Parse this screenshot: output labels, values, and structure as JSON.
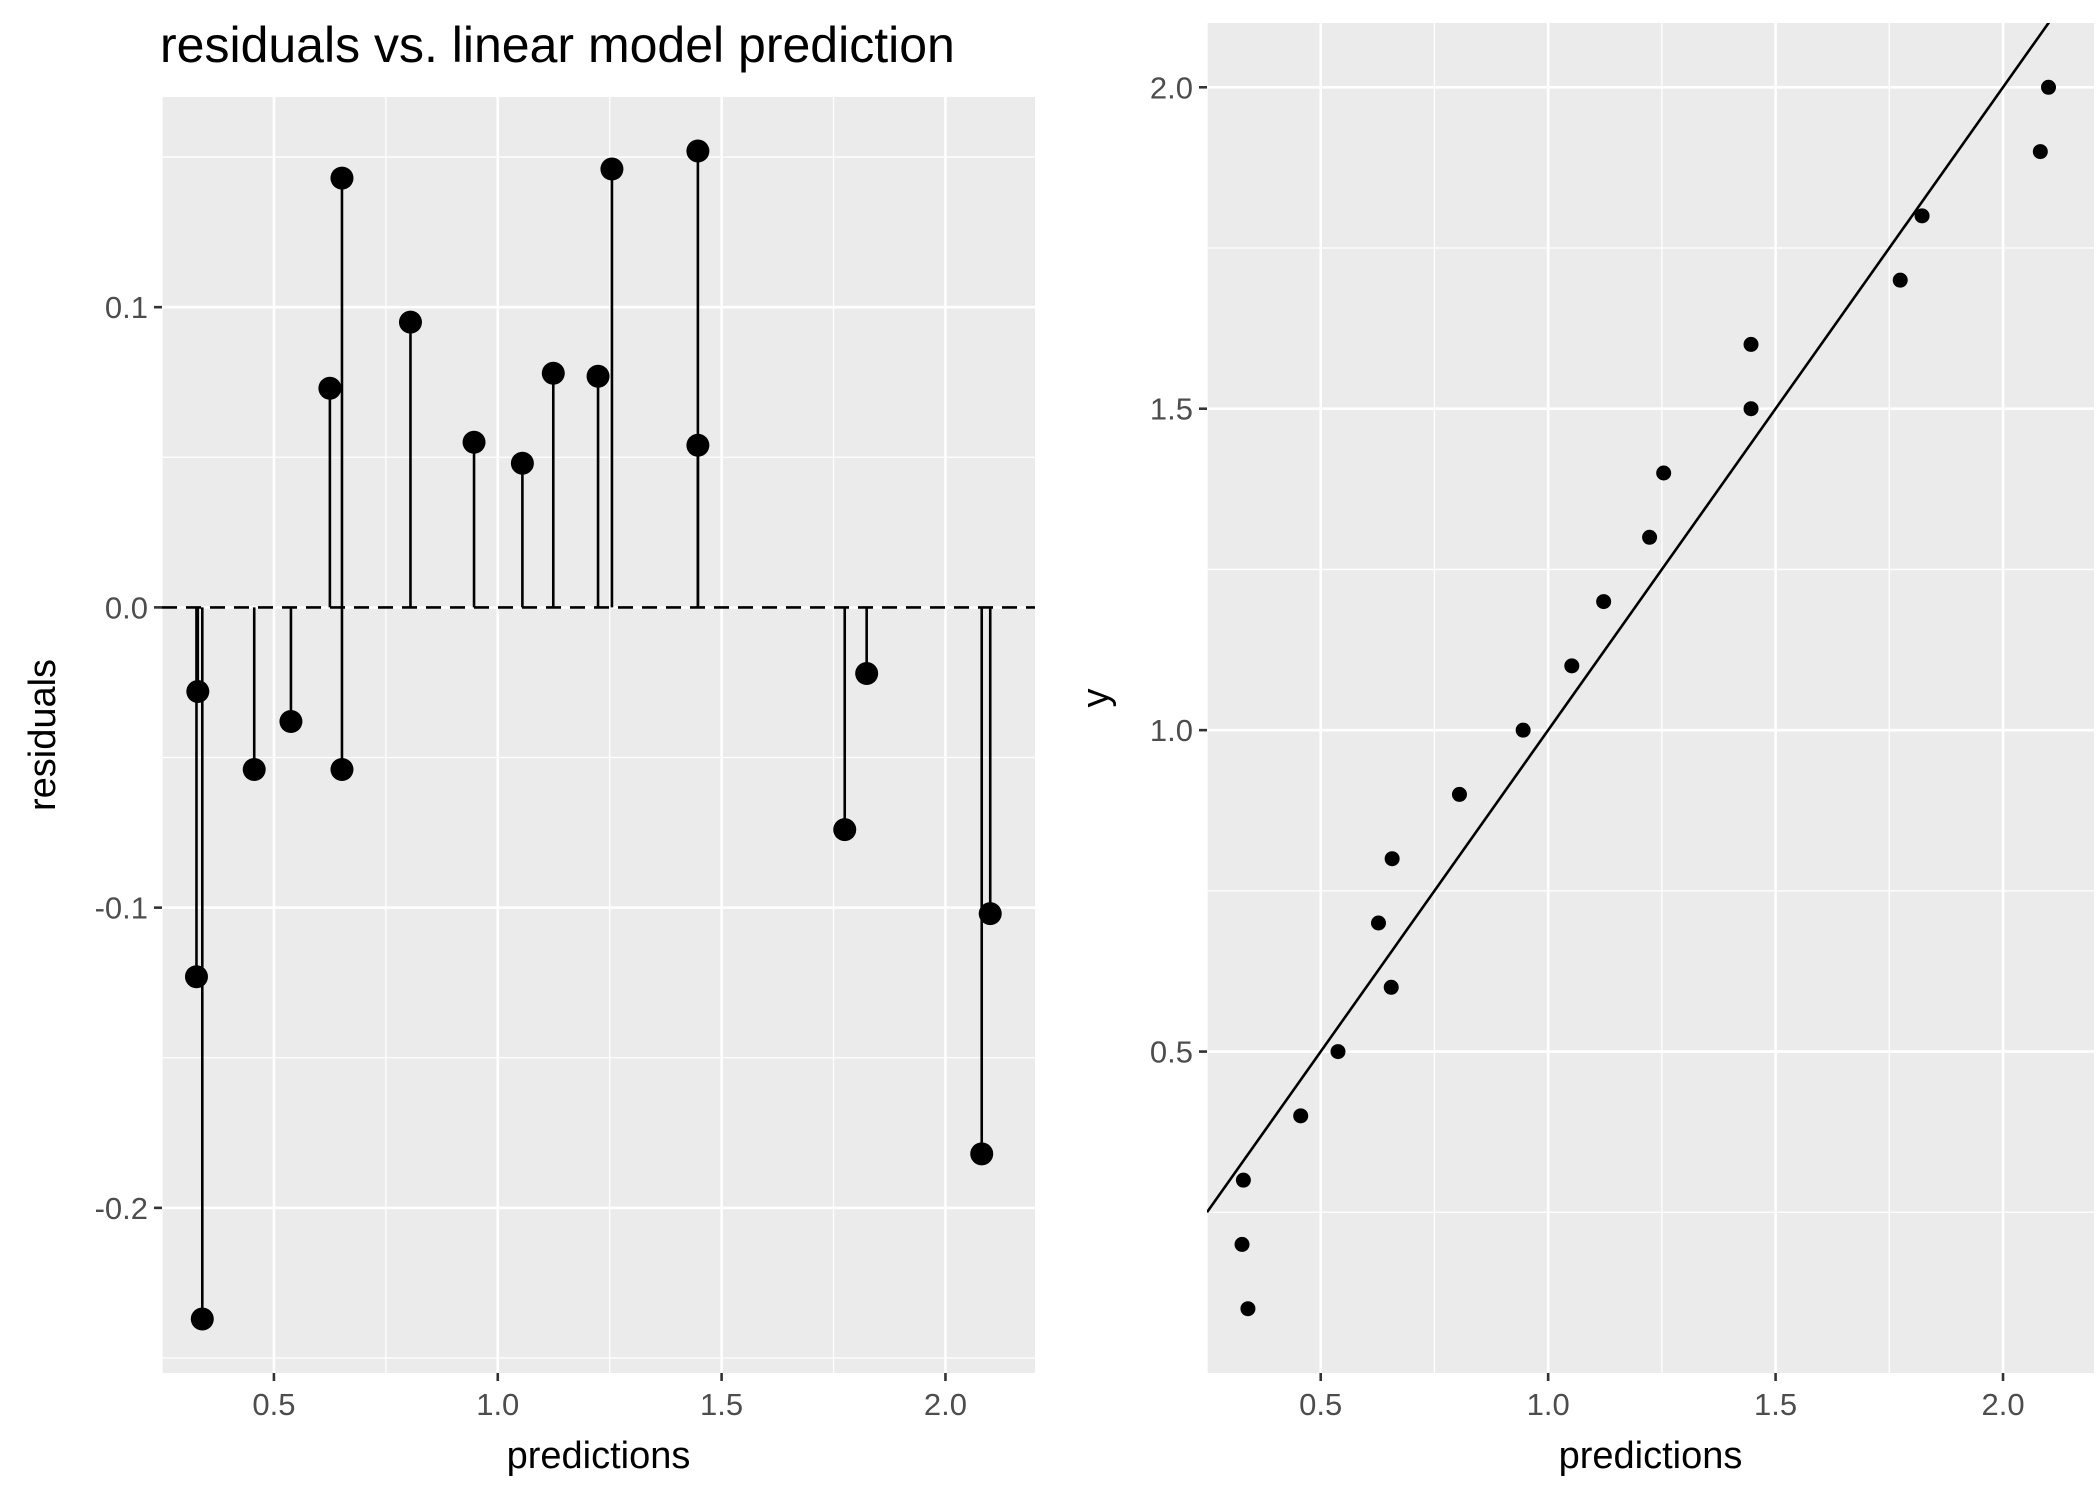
{
  "chart_data": [
    {
      "type": "scatter",
      "title": "residuals vs. linear model prediction",
      "xlabel": "predictions",
      "ylabel": "residuals",
      "xlim": [
        0.25,
        2.2
      ],
      "ylim": [
        -0.255,
        0.17
      ],
      "x_ticks": [
        {
          "value": 0.5,
          "label": "0.5"
        },
        {
          "value": 1.0,
          "label": "1.0"
        },
        {
          "value": 1.5,
          "label": "1.5"
        },
        {
          "value": 2.0,
          "label": "2.0"
        }
      ],
      "y_ticks": [
        {
          "value": -0.2,
          "label": "-0.2"
        },
        {
          "value": -0.1,
          "label": "-0.1"
        },
        {
          "value": 0.0,
          "label": "0.0"
        },
        {
          "value": 0.1,
          "label": "0.1"
        }
      ],
      "reference_line": {
        "y": 0,
        "style": "dashed"
      },
      "stems_to_zero": true,
      "points": [
        {
          "x": 0.327,
          "y": -0.123
        },
        {
          "x": 0.33,
          "y": -0.028
        },
        {
          "x": 0.34,
          "y": -0.237
        },
        {
          "x": 0.456,
          "y": -0.054
        },
        {
          "x": 0.538,
          "y": -0.038
        },
        {
          "x": 0.625,
          "y": 0.073
        },
        {
          "x": 0.652,
          "y": 0.143
        },
        {
          "x": 0.652,
          "y": -0.054
        },
        {
          "x": 0.805,
          "y": 0.095
        },
        {
          "x": 0.947,
          "y": 0.055
        },
        {
          "x": 1.055,
          "y": 0.048
        },
        {
          "x": 1.124,
          "y": 0.078
        },
        {
          "x": 1.224,
          "y": 0.077
        },
        {
          "x": 1.255,
          "y": 0.146
        },
        {
          "x": 1.447,
          "y": 0.152
        },
        {
          "x": 1.447,
          "y": 0.054
        },
        {
          "x": 1.775,
          "y": -0.074
        },
        {
          "x": 1.824,
          "y": -0.022
        },
        {
          "x": 2.081,
          "y": -0.182
        },
        {
          "x": 2.1,
          "y": -0.102
        }
      ],
      "grid": true
    },
    {
      "type": "scatter",
      "title": "",
      "xlabel": "predictions",
      "ylabel": "y",
      "xlim": [
        0.25,
        2.2
      ],
      "ylim": [
        0.0,
        2.1
      ],
      "x_ticks": [
        {
          "value": 0.5,
          "label": "0.5"
        },
        {
          "value": 1.0,
          "label": "1.0"
        },
        {
          "value": 1.5,
          "label": "1.5"
        },
        {
          "value": 2.0,
          "label": "2.0"
        }
      ],
      "y_ticks": [
        {
          "value": 0.5,
          "label": "0.5"
        },
        {
          "value": 1.0,
          "label": "1.0"
        },
        {
          "value": 1.5,
          "label": "1.5"
        },
        {
          "value": 2.0,
          "label": "2.0"
        }
      ],
      "reference_line": {
        "type": "y = x"
      },
      "points": [
        {
          "x": 0.327,
          "y": 0.2
        },
        {
          "x": 0.33,
          "y": 0.3
        },
        {
          "x": 0.34,
          "y": 0.1
        },
        {
          "x": 0.456,
          "y": 0.4
        },
        {
          "x": 0.538,
          "y": 0.5
        },
        {
          "x": 0.627,
          "y": 0.7
        },
        {
          "x": 0.655,
          "y": 0.6
        },
        {
          "x": 0.657,
          "y": 0.8
        },
        {
          "x": 0.805,
          "y": 0.9
        },
        {
          "x": 0.945,
          "y": 1.0
        },
        {
          "x": 1.052,
          "y": 1.1
        },
        {
          "x": 1.122,
          "y": 1.2
        },
        {
          "x": 1.223,
          "y": 1.3
        },
        {
          "x": 1.254,
          "y": 1.4
        },
        {
          "x": 1.446,
          "y": 1.5
        },
        {
          "x": 1.446,
          "y": 1.6
        },
        {
          "x": 1.774,
          "y": 1.7
        },
        {
          "x": 1.822,
          "y": 1.8
        },
        {
          "x": 2.082,
          "y": 1.9
        },
        {
          "x": 2.1,
          "y": 2.0
        }
      ],
      "grid": true
    }
  ]
}
